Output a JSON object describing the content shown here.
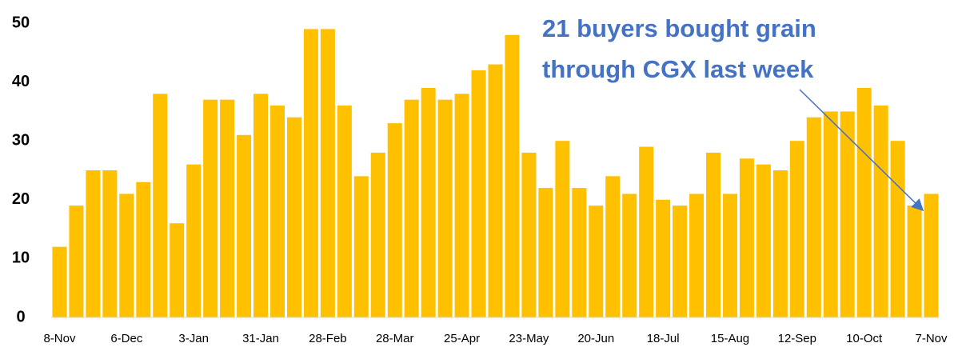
{
  "chart_data": {
    "type": "bar",
    "categories": [
      "8-Nov",
      null,
      null,
      null,
      "6-Dec",
      null,
      null,
      null,
      "3-Jan",
      null,
      null,
      null,
      "31-Jan",
      null,
      null,
      null,
      "28-Feb",
      null,
      null,
      null,
      "28-Mar",
      null,
      null,
      null,
      "25-Apr",
      null,
      null,
      null,
      "23-May",
      null,
      null,
      null,
      "20-Jun",
      null,
      null,
      null,
      "18-Jul",
      null,
      null,
      null,
      "15-Aug",
      null,
      null,
      null,
      "12-Sep",
      null,
      null,
      null,
      "10-Oct",
      null,
      null,
      null,
      "7-Nov"
    ],
    "values": [
      12,
      19,
      25,
      25,
      21,
      23,
      38,
      16,
      26,
      37,
      37,
      31,
      38,
      36,
      34,
      49,
      49,
      36,
      24,
      28,
      33,
      37,
      39,
      37,
      38,
      42,
      43,
      48,
      28,
      22,
      30,
      22,
      19,
      24,
      21,
      29,
      20,
      19,
      21,
      28,
      21,
      27,
      26,
      25,
      30,
      34,
      35,
      35,
      39,
      36,
      30,
      19,
      21
    ],
    "color": "#ffc000",
    "ylim": [
      0,
      50
    ],
    "yticks": [
      0,
      10,
      20,
      30,
      40,
      50
    ],
    "grid": false,
    "annotation": [
      "21 buyers bought grain",
      "through CGX last week"
    ],
    "annotation_color": "#4472c4"
  }
}
